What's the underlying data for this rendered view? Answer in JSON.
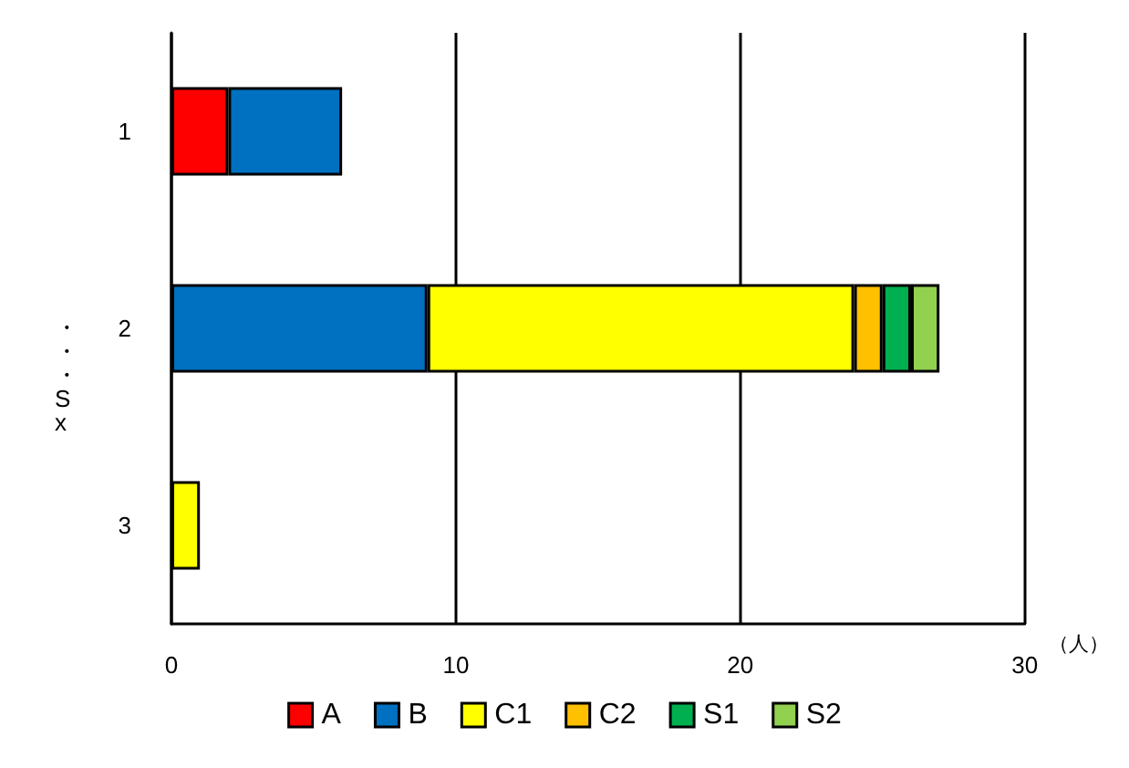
{
  "chart_data": {
    "type": "bar",
    "orientation": "horizontal",
    "stacked": true,
    "categories": [
      "1",
      "2",
      "3"
    ],
    "series": [
      {
        "name": "A",
        "color": "#ff0000",
        "values": [
          2,
          0,
          0
        ]
      },
      {
        "name": "B",
        "color": "#0070c0",
        "values": [
          4,
          9,
          0
        ]
      },
      {
        "name": "C1",
        "color": "#ffff00",
        "values": [
          0,
          15,
          1
        ]
      },
      {
        "name": "C2",
        "color": "#ffc000",
        "values": [
          0,
          1,
          0
        ]
      },
      {
        "name": "S1",
        "color": "#00b050",
        "values": [
          0,
          1,
          0
        ]
      },
      {
        "name": "S2",
        "color": "#92d050",
        "values": [
          0,
          1,
          0
        ]
      }
    ],
    "xlim": [
      0,
      30
    ],
    "xticks": [
      0,
      10,
      20,
      30
    ],
    "xlabel": "（人）",
    "ylabel": "・・・Sx",
    "grid": "x",
    "legend": "bottom"
  }
}
